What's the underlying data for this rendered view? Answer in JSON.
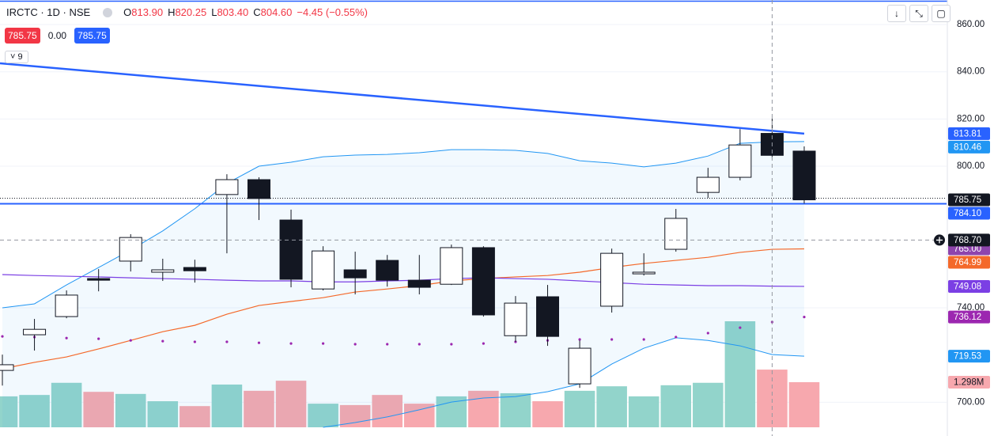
{
  "chart_data": {
    "type": "candlestick",
    "header": {
      "symbol": "IRCTC · 1D · NSE",
      "ohlc": [
        {
          "label": "O",
          "value": "813.90"
        },
        {
          "label": "H",
          "value": "820.25"
        },
        {
          "label": "L",
          "value": "803.40"
        },
        {
          "label": "C",
          "value": "804.60"
        }
      ],
      "change": "−4.45 (−0.55%)",
      "bid": "785.75",
      "spread": "0.00",
      "ask": "785.75",
      "indicators": "9"
    },
    "open": [
      713.5,
      728.6,
      736.3,
      752.4,
      759.8,
      755.1,
      757.1,
      788.0,
      794.3,
      777.2,
      748.0,
      756.1,
      760.1,
      751.7,
      750.0,
      765.5,
      728.2,
      744.7,
      707.8,
      740.7,
      754.4,
      764.8,
      788.9,
      795.3,
      813.9,
      806.4
    ],
    "high": [
      720.2,
      735.3,
      747.4,
      756.4,
      771.2,
      760.8,
      760.4,
      796.6,
      795.3,
      781.6,
      766.1,
      763.8,
      762.4,
      762.4,
      766.8,
      766.1,
      745.0,
      749.7,
      726.2,
      765.1,
      763.1,
      781.9,
      799.3,
      815.7,
      820.25,
      808.4
    ],
    "low": [
      707.1,
      721.9,
      735.6,
      747.0,
      755.4,
      751.4,
      750.7,
      763.1,
      777.2,
      748.7,
      747.4,
      745.7,
      749.0,
      745.7,
      749.7,
      736.3,
      725.6,
      723.9,
      706.1,
      738.0,
      753.7,
      763.8,
      786.6,
      794.0,
      803.4,
      784.2
    ],
    "close": [
      715.9,
      730.9,
      745.4,
      751.7,
      769.8,
      756.1,
      755.7,
      794.3,
      786.3,
      752.1,
      764.1,
      752.7,
      751.7,
      748.7,
      765.5,
      737.0,
      742.0,
      727.9,
      722.9,
      763.1,
      755.1,
      777.9,
      795.3,
      809.0,
      804.6,
      785.75
    ],
    "up_color": "#ffffff",
    "down_color": "#131722",
    "volume": [
      890000,
      930000,
      1280000,
      1020000,
      960000,
      750000,
      610000,
      1230000,
      1050000,
      1340000,
      680000,
      640000,
      930000,
      680000,
      890000,
      1050000,
      980000,
      750000,
      1050000,
      1180000,
      890000,
      1210000,
      1280000,
      3050000,
      1660000,
      1298000
    ],
    "volume_last_label": "1.298M",
    "volume_up_color": "#92d4cb",
    "volume_down_color": "#f7a8ae",
    "volume_label_color": "#f7a8ae",
    "upper_band": {
      "color": "#2196f3",
      "values": [
        740.0,
        741.7,
        749.7,
        757.1,
        764.5,
        772.6,
        782.0,
        792.7,
        800.0,
        801.7,
        804.0,
        804.7,
        805.0,
        805.7,
        807.0,
        807.0,
        806.7,
        805.4,
        802.3,
        801.3,
        799.7,
        801.3,
        804.3,
        809.7,
        810.3,
        810.46
      ]
    },
    "lower_band": {
      "color": "#2196f3",
      "values": [
        null,
        null,
        null,
        null,
        null,
        null,
        null,
        null,
        null,
        null,
        689.4,
        691.4,
        693.8,
        696.8,
        700.1,
        701.8,
        702.4,
        704.5,
        707.8,
        716.2,
        722.9,
        727.3,
        726.2,
        723.9,
        720.2,
        719.53
      ]
    },
    "band_fill": "#2196f3",
    "fast_ma": {
      "color": "#f4692a",
      "values": [
        714.2,
        716.9,
        719.2,
        722.6,
        726.2,
        729.9,
        732.6,
        737.3,
        741.0,
        742.7,
        744.3,
        746.7,
        748.0,
        749.4,
        751.4,
        752.4,
        753.1,
        753.7,
        755.1,
        757.1,
        758.8,
        760.1,
        761.4,
        763.5,
        764.8,
        764.99
      ]
    },
    "slow_ma": {
      "color": "#7b3fe4",
      "values": [
        754.1,
        753.7,
        753.4,
        753.1,
        752.7,
        752.4,
        752.1,
        751.7,
        751.4,
        751.4,
        751.0,
        751.0,
        751.4,
        751.7,
        752.4,
        752.7,
        752.4,
        752.1,
        751.4,
        750.7,
        750.0,
        749.7,
        749.4,
        749.4,
        749.2,
        749.08
      ]
    },
    "dots": {
      "color": "#9c27b0",
      "values": [
        727.9,
        727.6,
        727.2,
        726.9,
        726.2,
        725.9,
        725.6,
        725.6,
        725.2,
        724.9,
        724.9,
        724.6,
        724.6,
        724.6,
        724.6,
        724.9,
        725.6,
        726.2,
        726.6,
        726.6,
        726.6,
        727.6,
        729.3,
        731.6,
        734.0,
        736.12
      ]
    },
    "trendline": {
      "color": "#2962ff",
      "values": [
        843.6,
        813.81
      ]
    },
    "horizontal_line": {
      "color": "#2962ff",
      "value": 784.1,
      "label": "784.10"
    },
    "crosshair": {
      "value": 768.7,
      "label": "768.70",
      "color": "#131722"
    },
    "extra_label": {
      "value": 765,
      "label": "765.00",
      "color": "#8e44ad"
    },
    "last_price_color": "#131722",
    "ylim": [
      689.4,
      870.4
    ],
    "yticks": [
      {
        "value": 700,
        "label": "700.00"
      },
      {
        "value": 740,
        "label": "740.00"
      },
      {
        "value": 800,
        "label": "800.00"
      },
      {
        "value": 820,
        "label": "820.00"
      },
      {
        "value": 840,
        "label": "840.00"
      },
      {
        "value": 860,
        "label": "860.00"
      }
    ],
    "grid": true
  }
}
